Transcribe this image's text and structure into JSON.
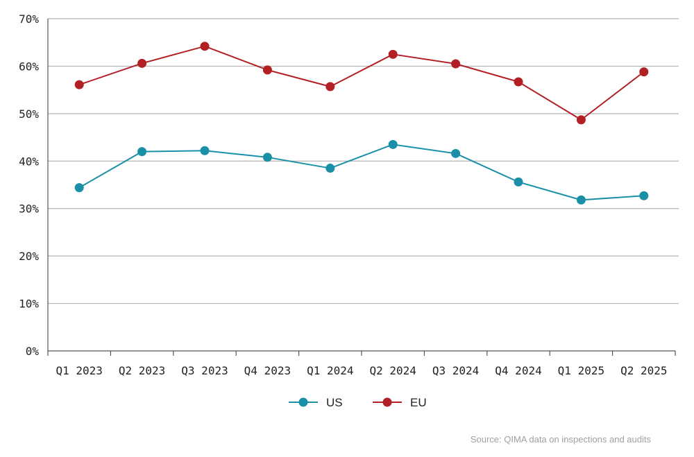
{
  "chart_data": {
    "type": "line",
    "categories": [
      "Q1 2023",
      "Q2 2023",
      "Q3 2023",
      "Q4 2023",
      "Q1 2024",
      "Q2 2024",
      "Q3 2024",
      "Q4 2024",
      "Q1 2025",
      "Q2 2025"
    ],
    "series": [
      {
        "name": "US",
        "color": "#1a8fa8",
        "values": [
          34.4,
          42.0,
          42.2,
          40.8,
          38.5,
          43.5,
          41.6,
          35.6,
          31.8,
          32.7
        ]
      },
      {
        "name": "EU",
        "color": "#b22024",
        "values": [
          56.1,
          60.6,
          64.2,
          59.2,
          55.7,
          62.5,
          60.5,
          56.7,
          48.7,
          58.8
        ]
      }
    ],
    "y_ticks": [
      "0%",
      "10%",
      "20%",
      "30%",
      "40%",
      "50%",
      "60%",
      "70%"
    ],
    "ylim": [
      0,
      70
    ],
    "grid": true,
    "legend": "bottom-center",
    "source": "Source: QIMA data on inspections and audits"
  }
}
